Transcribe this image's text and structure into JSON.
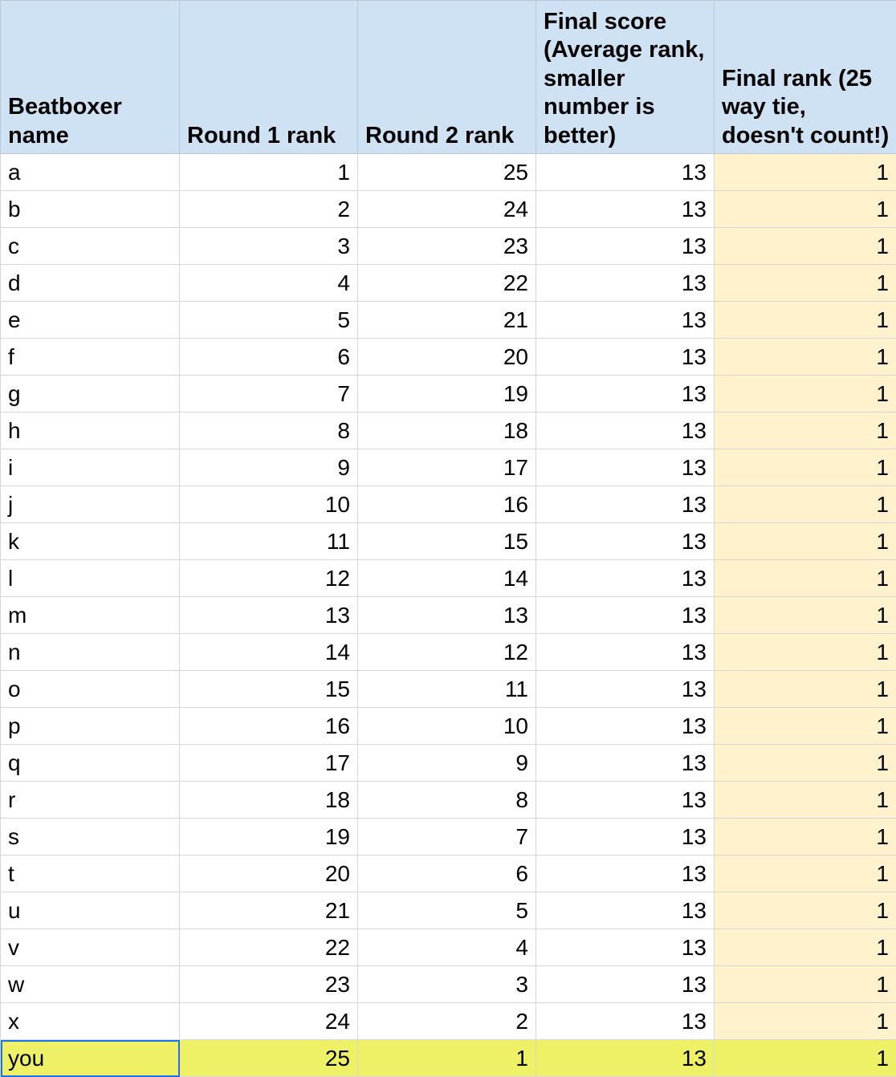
{
  "headers": [
    "Beatboxer name",
    "Round 1 rank",
    "Round 2 rank",
    "Final score (Average rank, smaller number is better)",
    "Final rank (25 way tie, doesn't count!)"
  ],
  "rows": [
    {
      "name": "a",
      "round1": "1",
      "round2": "25",
      "final_score": "13",
      "final_rank": "1"
    },
    {
      "name": "b",
      "round1": "2",
      "round2": "24",
      "final_score": "13",
      "final_rank": "1"
    },
    {
      "name": "c",
      "round1": "3",
      "round2": "23",
      "final_score": "13",
      "final_rank": "1"
    },
    {
      "name": "d",
      "round1": "4",
      "round2": "22",
      "final_score": "13",
      "final_rank": "1"
    },
    {
      "name": "e",
      "round1": "5",
      "round2": "21",
      "final_score": "13",
      "final_rank": "1"
    },
    {
      "name": "f",
      "round1": "6",
      "round2": "20",
      "final_score": "13",
      "final_rank": "1"
    },
    {
      "name": "g",
      "round1": "7",
      "round2": "19",
      "final_score": "13",
      "final_rank": "1"
    },
    {
      "name": "h",
      "round1": "8",
      "round2": "18",
      "final_score": "13",
      "final_rank": "1"
    },
    {
      "name": "i",
      "round1": "9",
      "round2": "17",
      "final_score": "13",
      "final_rank": "1"
    },
    {
      "name": "j",
      "round1": "10",
      "round2": "16",
      "final_score": "13",
      "final_rank": "1"
    },
    {
      "name": "k",
      "round1": "11",
      "round2": "15",
      "final_score": "13",
      "final_rank": "1"
    },
    {
      "name": "l",
      "round1": "12",
      "round2": "14",
      "final_score": "13",
      "final_rank": "1"
    },
    {
      "name": "m",
      "round1": "13",
      "round2": "13",
      "final_score": "13",
      "final_rank": "1"
    },
    {
      "name": "n",
      "round1": "14",
      "round2": "12",
      "final_score": "13",
      "final_rank": "1"
    },
    {
      "name": "o",
      "round1": "15",
      "round2": "11",
      "final_score": "13",
      "final_rank": "1"
    },
    {
      "name": "p",
      "round1": "16",
      "round2": "10",
      "final_score": "13",
      "final_rank": "1"
    },
    {
      "name": "q",
      "round1": "17",
      "round2": "9",
      "final_score": "13",
      "final_rank": "1"
    },
    {
      "name": "r",
      "round1": "18",
      "round2": "8",
      "final_score": "13",
      "final_rank": "1"
    },
    {
      "name": "s",
      "round1": "19",
      "round2": "7",
      "final_score": "13",
      "final_rank": "1"
    },
    {
      "name": "t",
      "round1": "20",
      "round2": "6",
      "final_score": "13",
      "final_rank": "1"
    },
    {
      "name": "u",
      "round1": "21",
      "round2": "5",
      "final_score": "13",
      "final_rank": "1"
    },
    {
      "name": "v",
      "round1": "22",
      "round2": "4",
      "final_score": "13",
      "final_rank": "1"
    },
    {
      "name": "w",
      "round1": "23",
      "round2": "3",
      "final_score": "13",
      "final_rank": "1"
    },
    {
      "name": "x",
      "round1": "24",
      "round2": "2",
      "final_score": "13",
      "final_rank": "1"
    },
    {
      "name": "you",
      "round1": "25",
      "round2": "1",
      "final_score": "13",
      "final_rank": "1"
    }
  ],
  "colors": {
    "header_bg": "#cfe2f3",
    "rank_col_bg": "#fff2cc",
    "highlight_row_bg": "#eef066",
    "selection_border": "#1a73e8"
  }
}
